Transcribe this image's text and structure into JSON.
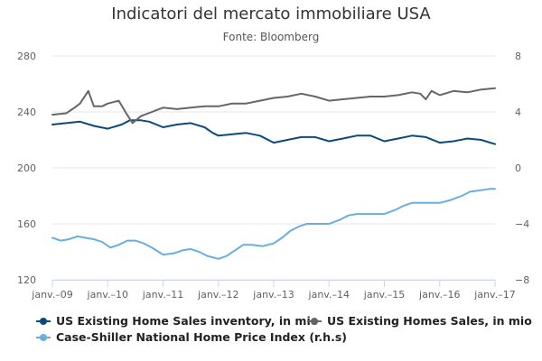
{
  "chart_data": {
    "type": "line",
    "title": "Indicatori del mercato immobiliare USA",
    "subtitle": "Fonte: Bloomberg",
    "x_tick_labels": [
      "janv.–09",
      "janv.–10",
      "janv.–11",
      "janv.–12",
      "janv.–13",
      "janv.–14",
      "janv.–15",
      "janv.–16",
      "janv.–17"
    ],
    "x_range": [
      2009.0,
      2017.0
    ],
    "y_left": {
      "range": [
        120,
        280
      ],
      "ticks": [
        120,
        160,
        200,
        240,
        280
      ],
      "tick_labels": [
        "120",
        "160",
        "200",
        "240",
        "280"
      ]
    },
    "y_right": {
      "range": [
        -8,
        8
      ],
      "ticks": [
        -8,
        -4,
        0,
        4,
        8
      ],
      "tick_labels": [
        "−8",
        "−4",
        "0",
        "4",
        "8"
      ]
    },
    "grid": true,
    "legend_position": "bottom",
    "series": [
      {
        "name": "US Existing Home Sales inventory, in mio",
        "axis": "left",
        "color": "#0b4a7c",
        "points": [
          [
            2009.0,
            231
          ],
          [
            2009.25,
            232
          ],
          [
            2009.5,
            233
          ],
          [
            2009.75,
            230
          ],
          [
            2010.0,
            228
          ],
          [
            2010.25,
            231
          ],
          [
            2010.4,
            234
          ],
          [
            2010.6,
            234
          ],
          [
            2010.75,
            233
          ],
          [
            2011.0,
            229
          ],
          [
            2011.25,
            231
          ],
          [
            2011.5,
            232
          ],
          [
            2011.75,
            229
          ],
          [
            2011.9,
            225
          ],
          [
            2012.0,
            223
          ],
          [
            2012.25,
            224
          ],
          [
            2012.5,
            225
          ],
          [
            2012.75,
            223
          ],
          [
            2013.0,
            218
          ],
          [
            2013.25,
            220
          ],
          [
            2013.5,
            222
          ],
          [
            2013.75,
            222
          ],
          [
            2014.0,
            219
          ],
          [
            2014.25,
            221
          ],
          [
            2014.5,
            223
          ],
          [
            2014.75,
            223
          ],
          [
            2015.0,
            219
          ],
          [
            2015.25,
            221
          ],
          [
            2015.5,
            223
          ],
          [
            2015.75,
            222
          ],
          [
            2016.0,
            218
          ],
          [
            2016.25,
            219
          ],
          [
            2016.5,
            221
          ],
          [
            2016.75,
            220
          ],
          [
            2017.0,
            217
          ]
        ]
      },
      {
        "name": "US Existing Homes Sales, in mio",
        "axis": "right",
        "color": "#666666",
        "points": [
          [
            2009.0,
            3.8
          ],
          [
            2009.25,
            3.9
          ],
          [
            2009.4,
            4.3
          ],
          [
            2009.5,
            4.6
          ],
          [
            2009.65,
            5.5
          ],
          [
            2009.75,
            4.4
          ],
          [
            2009.9,
            4.4
          ],
          [
            2010.0,
            4.6
          ],
          [
            2010.2,
            4.8
          ],
          [
            2010.35,
            3.8
          ],
          [
            2010.45,
            3.2
          ],
          [
            2010.6,
            3.7
          ],
          [
            2010.8,
            4.0
          ],
          [
            2011.0,
            4.3
          ],
          [
            2011.25,
            4.2
          ],
          [
            2011.5,
            4.3
          ],
          [
            2011.75,
            4.4
          ],
          [
            2012.0,
            4.4
          ],
          [
            2012.25,
            4.6
          ],
          [
            2012.5,
            4.6
          ],
          [
            2012.75,
            4.8
          ],
          [
            2013.0,
            5.0
          ],
          [
            2013.25,
            5.1
          ],
          [
            2013.5,
            5.3
          ],
          [
            2013.75,
            5.1
          ],
          [
            2014.0,
            4.8
          ],
          [
            2014.25,
            4.9
          ],
          [
            2014.5,
            5.0
          ],
          [
            2014.75,
            5.1
          ],
          [
            2015.0,
            5.1
          ],
          [
            2015.25,
            5.2
          ],
          [
            2015.5,
            5.4
          ],
          [
            2015.65,
            5.3
          ],
          [
            2015.75,
            4.9
          ],
          [
            2015.85,
            5.5
          ],
          [
            2016.0,
            5.2
          ],
          [
            2016.25,
            5.5
          ],
          [
            2016.5,
            5.4
          ],
          [
            2016.75,
            5.6
          ],
          [
            2017.0,
            5.7
          ]
        ]
      },
      {
        "name": "Case-Shiller National Home Price Index (r.h.s)",
        "axis": "left",
        "color": "#6aaee0",
        "points": [
          [
            2009.0,
            150
          ],
          [
            2009.15,
            148
          ],
          [
            2009.3,
            149
          ],
          [
            2009.45,
            151
          ],
          [
            2009.6,
            150
          ],
          [
            2009.75,
            149
          ],
          [
            2009.9,
            147
          ],
          [
            2010.05,
            143
          ],
          [
            2010.2,
            145
          ],
          [
            2010.35,
            148
          ],
          [
            2010.5,
            148
          ],
          [
            2010.65,
            146
          ],
          [
            2010.8,
            143
          ],
          [
            2011.0,
            138
          ],
          [
            2011.2,
            139
          ],
          [
            2011.35,
            141
          ],
          [
            2011.5,
            142
          ],
          [
            2011.65,
            140
          ],
          [
            2011.8,
            137
          ],
          [
            2012.0,
            135
          ],
          [
            2012.15,
            137
          ],
          [
            2012.3,
            141
          ],
          [
            2012.45,
            145
          ],
          [
            2012.6,
            145
          ],
          [
            2012.8,
            144
          ],
          [
            2013.0,
            146
          ],
          [
            2013.15,
            150
          ],
          [
            2013.3,
            155
          ],
          [
            2013.45,
            158
          ],
          [
            2013.6,
            160
          ],
          [
            2013.8,
            160
          ],
          [
            2014.0,
            160
          ],
          [
            2014.2,
            163
          ],
          [
            2014.35,
            166
          ],
          [
            2014.5,
            167
          ],
          [
            2014.75,
            167
          ],
          [
            2015.0,
            167
          ],
          [
            2015.2,
            170
          ],
          [
            2015.35,
            173
          ],
          [
            2015.5,
            175
          ],
          [
            2015.75,
            175
          ],
          [
            2016.0,
            175
          ],
          [
            2016.2,
            177
          ],
          [
            2016.4,
            180
          ],
          [
            2016.55,
            183
          ],
          [
            2016.75,
            184
          ],
          [
            2016.9,
            185
          ],
          [
            2017.0,
            185
          ]
        ]
      }
    ]
  }
}
